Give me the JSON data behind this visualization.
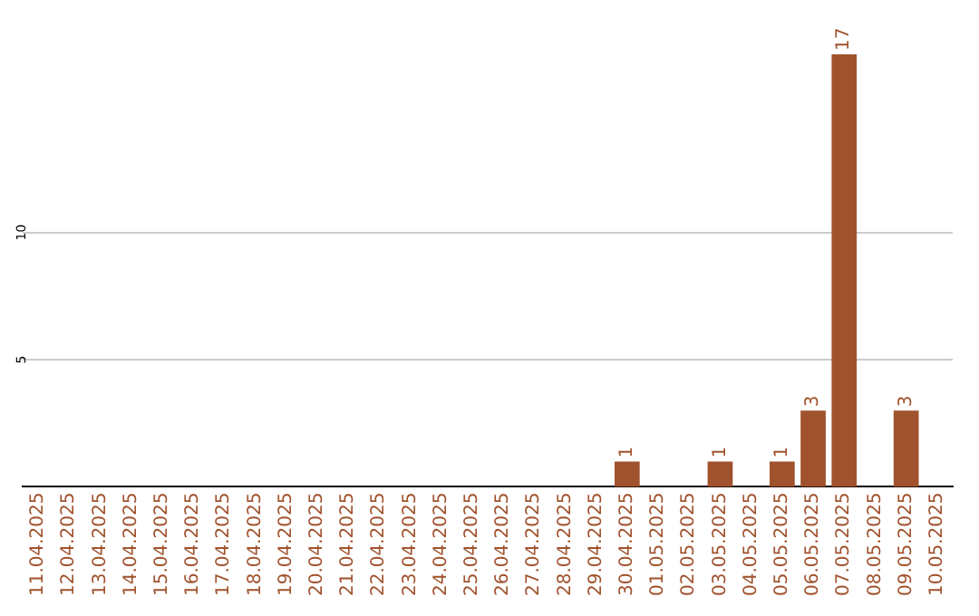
{
  "chart_data": {
    "type": "bar",
    "categories": [
      "11.04.2025",
      "12.04.2025",
      "13.04.2025",
      "14.04.2025",
      "15.04.2025",
      "16.04.2025",
      "17.04.2025",
      "18.04.2025",
      "19.04.2025",
      "20.04.2025",
      "21.04.2025",
      "22.04.2025",
      "23.04.2025",
      "24.04.2025",
      "25.04.2025",
      "26.04.2025",
      "27.04.2025",
      "28.04.2025",
      "29.04.2025",
      "30.04.2025",
      "01.05.2025",
      "02.05.2025",
      "03.05.2025",
      "04.05.2025",
      "05.05.2025",
      "06.05.2025",
      "07.05.2025",
      "08.05.2025",
      "09.05.2025",
      "10.05.2025"
    ],
    "values": [
      0,
      0,
      0,
      0,
      0,
      0,
      0,
      0,
      0,
      0,
      0,
      0,
      0,
      0,
      0,
      0,
      0,
      0,
      0,
      1,
      0,
      0,
      1,
      0,
      1,
      3,
      17,
      0,
      3,
      0
    ],
    "value_labels": [
      null,
      null,
      null,
      null,
      null,
      null,
      null,
      null,
      null,
      null,
      null,
      null,
      null,
      null,
      null,
      null,
      null,
      null,
      null,
      "1",
      null,
      null,
      "1",
      null,
      "1",
      "3",
      "17",
      null,
      "3",
      null
    ],
    "color": "#a0522d",
    "ylim": [
      0,
      17
    ],
    "yticks": [
      5,
      10
    ],
    "grid": "y",
    "legend": false
  }
}
